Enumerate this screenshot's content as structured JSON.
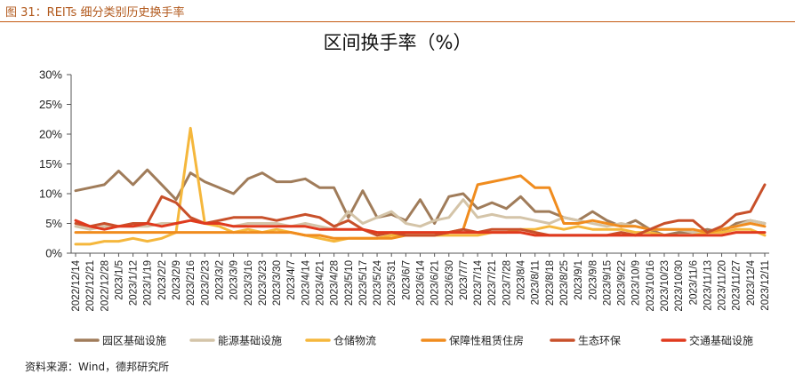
{
  "figure_caption": "图 31：REITs 细分类别历史换手率",
  "source_note": "资料来源：Wind，德邦研究所",
  "chart_data": {
    "type": "line",
    "title": "区间换手率（%）",
    "xlabel": "",
    "ylabel": "",
    "ylim": [
      0,
      30
    ],
    "yticks": [
      "0%",
      "5%",
      "10%",
      "15%",
      "20%",
      "25%",
      "30%"
    ],
    "ytick_values": [
      0,
      5,
      10,
      15,
      20,
      25,
      30
    ],
    "legend_position": "bottom",
    "x_tick_labels": [
      "2022/12/14",
      "2022/12/21",
      "2022/12/28",
      "2023/1/5",
      "2023/1/12",
      "2023/1/19",
      "2023/2/2",
      "2023/2/9",
      "2023/2/16",
      "2023/2/23",
      "2023/3/2",
      "2023/3/9",
      "2023/3/16",
      "2023/3/23",
      "2023/3/30",
      "2023/4/7",
      "2023/4/14",
      "2023/4/21",
      "2023/4/28",
      "2023/5/10",
      "2023/5/17",
      "2023/5/24",
      "2023/5/31",
      "2023/6/7",
      "2023/6/14",
      "2023/6/21",
      "2023/6/30",
      "2023/7/7",
      "2023/7/14",
      "2023/7/21",
      "2023/7/28",
      "2023/8/4",
      "2023/8/11",
      "2023/8/18",
      "2023/8/25",
      "2023/9/1",
      "2023/9/8",
      "2023/9/15",
      "2023/9/22",
      "2023/10/9",
      "2023/10/16",
      "2023/10/23",
      "2023/10/30",
      "2023/11/6",
      "2023/11/13",
      "2023/11/20",
      "2023/11/27",
      "2023/12/4",
      "2023/12/11"
    ],
    "series": [
      {
        "name": "园区基础设施",
        "color": "#a07c5a",
        "values": [
          10.5,
          11,
          11.5,
          13.8,
          11.5,
          14,
          11.5,
          9,
          13.5,
          12,
          11,
          10,
          12.5,
          13.5,
          12,
          12,
          12.5,
          11,
          11,
          6,
          10.5,
          6,
          6.5,
          5.5,
          9,
          5,
          9.5,
          10,
          7.5,
          8.5,
          7.5,
          9.5,
          7,
          7,
          6,
          5.5,
          7,
          5.5,
          4.5,
          5.5,
          4,
          3,
          3.5,
          3.5,
          4,
          3.5,
          5,
          5.5,
          5
        ]
      },
      {
        "name": "能源基础设施",
        "color": "#d4c4a8",
        "values": [
          4.5,
          4,
          4.5,
          4.5,
          4.5,
          4.5,
          5,
          5,
          5.5,
          5,
          5,
          4.5,
          5,
          5,
          5,
          4.5,
          5,
          4.5,
          4,
          7,
          5,
          6,
          7,
          5,
          4.5,
          5.5,
          6,
          9,
          6,
          6.5,
          6,
          6,
          5.5,
          5,
          6,
          5.5,
          5,
          4.5,
          5,
          4.5,
          4,
          4,
          4,
          3.5,
          3.5,
          4,
          4.5,
          5.5,
          5
        ]
      },
      {
        "name": "仓储物流",
        "color": "#f5b73c",
        "values": [
          1.5,
          1.5,
          2,
          2,
          2.5,
          2,
          2.5,
          3.5,
          21,
          5,
          4.5,
          3.5,
          4,
          3.5,
          4,
          3.5,
          3,
          2.5,
          2,
          2.5,
          2.5,
          2.5,
          3,
          3,
          3,
          3,
          3,
          3,
          3,
          3.5,
          3.5,
          4,
          4,
          4.5,
          4,
          4.5,
          4,
          4,
          4,
          3.5,
          3.5,
          3,
          3,
          3,
          3.5,
          3.5,
          4,
          4,
          3
        ]
      },
      {
        "name": "保障性租赁住房",
        "color": "#f08c1e",
        "values": [
          3.5,
          3.5,
          3.5,
          3.5,
          3.5,
          3.5,
          3.5,
          3.5,
          3.5,
          3.5,
          3.5,
          3.5,
          3.5,
          3.5,
          3.5,
          3.5,
          3,
          3,
          2.5,
          2.5,
          2.5,
          2.5,
          2.5,
          3,
          3,
          3,
          3.5,
          4,
          11.5,
          12,
          12.5,
          13,
          11,
          11,
          5,
          5,
          5.5,
          5,
          4.5,
          4.5,
          4,
          4,
          4,
          4,
          3.5,
          4,
          4.5,
          5,
          4.5
        ]
      },
      {
        "name": "生态环保",
        "color": "#c8502a",
        "values": [
          5,
          4.5,
          5,
          4.5,
          5,
          5,
          9.5,
          8.5,
          6,
          5,
          5.5,
          6,
          6,
          6,
          5.5,
          6,
          6.5,
          6,
          4.5,
          5.5,
          4,
          3,
          3.5,
          3,
          3,
          3,
          3.5,
          4,
          3.5,
          4,
          4,
          4,
          3.5,
          3,
          3,
          3,
          3,
          3,
          3.5,
          3,
          4,
          5,
          5.5,
          5.5,
          3.5,
          4.5,
          6.5,
          7,
          11.5
        ]
      },
      {
        "name": "交通基础设施",
        "color": "#e03a1e",
        "values": [
          5.5,
          4.5,
          4,
          4.5,
          4.5,
          5,
          4.5,
          5,
          5.5,
          5,
          5,
          4.5,
          4.5,
          4.5,
          4.5,
          4.5,
          4.5,
          4,
          4,
          4,
          4,
          3.5,
          3.5,
          3.5,
          3.5,
          3.5,
          3.5,
          3.5,
          3.5,
          3.5,
          3.5,
          3.5,
          3,
          3,
          3,
          3,
          3,
          3,
          3,
          3,
          3,
          3,
          3,
          3,
          3,
          3,
          3.5,
          3.5,
          3.5
        ]
      }
    ]
  }
}
